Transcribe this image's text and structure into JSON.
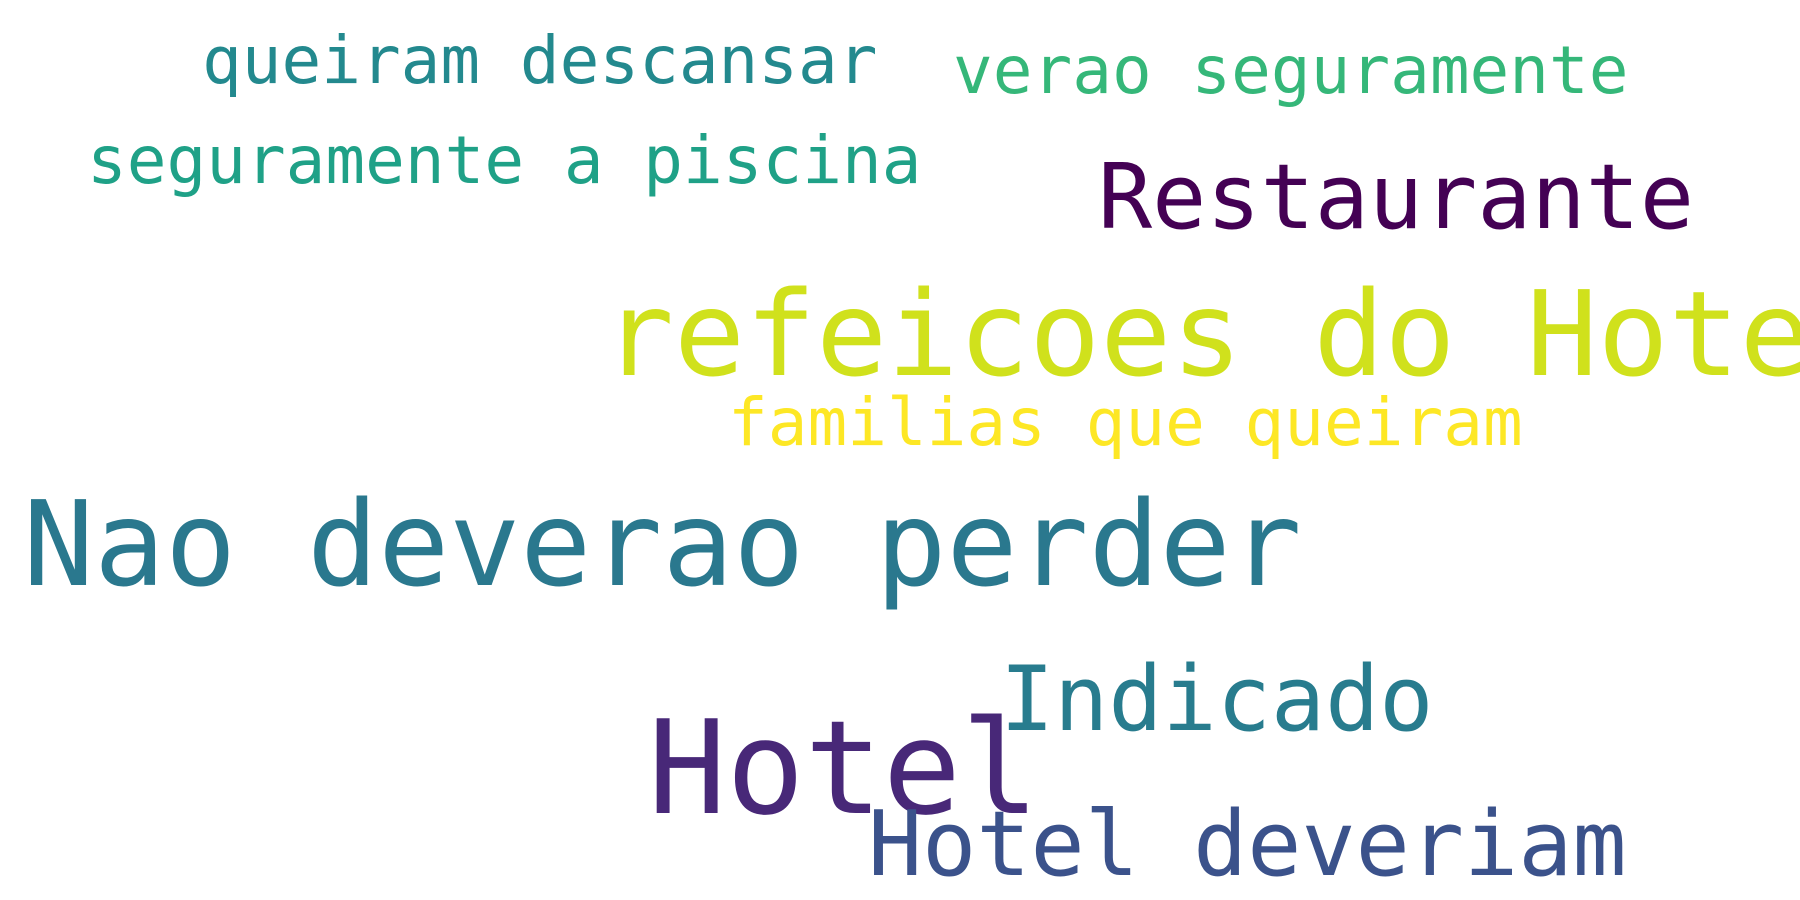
{
  "words": [
    {
      "text": "queiram descansar",
      "color": "#23898e"
    },
    {
      "text": "verao seguramente",
      "color": "#35b779"
    },
    {
      "text": "seguramente a piscina",
      "color": "#1fa187"
    },
    {
      "text": "Restaurante",
      "color": "#440154"
    },
    {
      "text": "refeicoes do Hotel",
      "color": "#d0e11c"
    },
    {
      "text": "familias que queiram",
      "color": "#fde725"
    },
    {
      "text": "Nao deverao perder",
      "color": "#2a788e"
    },
    {
      "text": "Indicado",
      "color": "#287c8e"
    },
    {
      "text": "Hotel",
      "color": "#482878"
    },
    {
      "text": "Hotel deveriam",
      "color": "#3b528b"
    }
  ]
}
